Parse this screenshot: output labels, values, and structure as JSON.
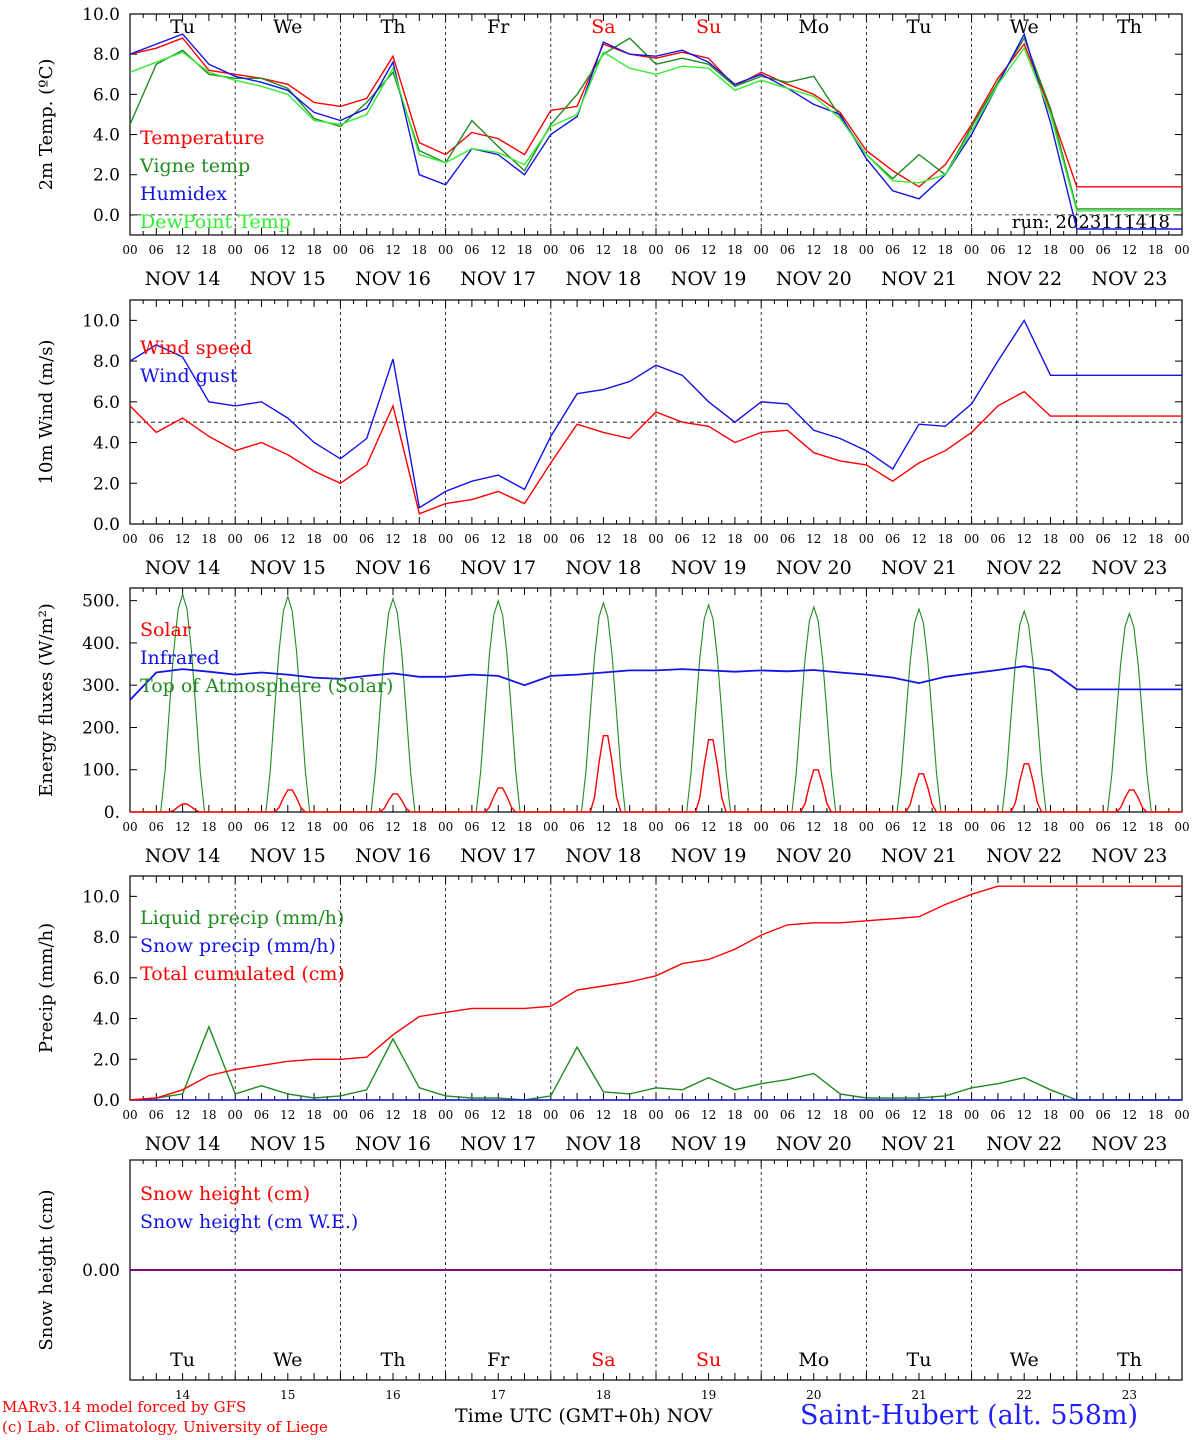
{
  "footer": {
    "credit_model": "MARv3.14 model forced by GFS",
    "credit_lab": "(c) Lab. of Climatology, University of Liege",
    "time_label": "Time UTC (GMT+0h) NOV",
    "station": "Saint-Hubert (alt. 558m)"
  },
  "colors": {
    "red": "#ff0000",
    "green": "#228b22",
    "blue": "#1414e6",
    "lightgreen": "#33ee33",
    "purple": "#7f007f"
  },
  "chart_data": [
    {
      "type": "line",
      "ylabel": "2m Temp. (ºC)",
      "ylim": [
        -1,
        10
      ],
      "yticks": [
        0,
        2,
        4,
        6,
        8,
        10
      ],
      "ytick_labels": [
        "0.0",
        "2.0",
        "4.0",
        "6.0",
        "8.0",
        "10.0"
      ],
      "run_label": "run: 2023111418",
      "reference_line": 0,
      "day_labels": [
        "Tu",
        "We",
        "Th",
        "Fr",
        "Sa",
        "Su",
        "Mo",
        "Tu",
        "We",
        "Th"
      ],
      "weekend_days": [
        4,
        5
      ],
      "hour_labels": [
        "00",
        "06",
        "12",
        "18"
      ],
      "date_labels": [
        "NOV 14",
        "NOV 15",
        "NOV 16",
        "NOV 17",
        "NOV 18",
        "NOV 19",
        "NOV 20",
        "NOV 21",
        "NOV 22",
        "NOV 23"
      ],
      "x_hours": [
        0,
        6,
        12,
        18,
        24,
        30,
        36,
        42,
        48,
        54,
        60,
        66,
        72,
        78,
        84,
        90,
        96,
        102,
        108,
        114,
        120,
        126,
        132,
        138,
        144,
        150,
        156,
        162,
        168,
        174,
        180,
        186,
        192,
        198,
        204,
        210,
        216,
        222,
        228,
        234,
        240
      ],
      "series": [
        {
          "name": "Temperature",
          "color": "red",
          "values": [
            8.0,
            8.3,
            8.8,
            7.2,
            7.0,
            6.8,
            6.5,
            5.6,
            5.4,
            5.8,
            7.9,
            3.6,
            3.0,
            4.1,
            3.8,
            3.0,
            5.2,
            5.4,
            8.5,
            8.0,
            7.8,
            8.1,
            7.8,
            6.4,
            7.1,
            6.5,
            6.0,
            5.1,
            3.2,
            2.2,
            1.4,
            2.5,
            4.5,
            6.8,
            8.5,
            5.2,
            1.4,
            1.4,
            1.4,
            1.4,
            1.4
          ]
        },
        {
          "name": "Vigne temp",
          "color": "green",
          "values": [
            4.5,
            7.5,
            8.2,
            7.0,
            6.8,
            6.8,
            6.3,
            4.8,
            4.4,
            5.6,
            7.1,
            3.2,
            2.6,
            4.7,
            3.4,
            2.2,
            4.5,
            6.0,
            8.0,
            8.8,
            7.5,
            7.8,
            7.5,
            6.4,
            6.9,
            6.6,
            6.9,
            4.9,
            3.0,
            1.8,
            3.0,
            2.0,
            4.4,
            6.6,
            8.8,
            5.3,
            0.3,
            0.3,
            0.3,
            0.3,
            0.3
          ]
        },
        {
          "name": "Humidex",
          "color": "blue",
          "values": [
            8.0,
            8.5,
            9.0,
            7.5,
            6.9,
            6.6,
            6.2,
            5.1,
            4.7,
            5.3,
            7.6,
            2.0,
            1.5,
            3.3,
            3.0,
            2.0,
            4.0,
            4.9,
            8.6,
            8.0,
            7.9,
            8.2,
            7.6,
            6.5,
            7.0,
            6.3,
            5.5,
            5.0,
            2.8,
            1.2,
            0.8,
            2.0,
            4.0,
            6.5,
            9.0,
            4.6,
            -0.7,
            -0.7,
            -0.7,
            -0.7,
            -0.7
          ]
        },
        {
          "name": "DewPoint Temp",
          "color": "lightgreen",
          "values": [
            7.1,
            7.6,
            8.1,
            7.1,
            6.7,
            6.4,
            6.0,
            4.7,
            4.5,
            5.0,
            7.3,
            3.0,
            2.6,
            3.3,
            3.1,
            2.5,
            4.4,
            5.0,
            8.1,
            7.3,
            7.0,
            7.4,
            7.3,
            6.2,
            6.7,
            6.3,
            5.9,
            4.8,
            3.0,
            1.7,
            1.6,
            2.0,
            4.2,
            6.5,
            8.3,
            5.0,
            0.2,
            0.2,
            0.2,
            0.2,
            0.2
          ]
        }
      ]
    },
    {
      "type": "line",
      "ylabel": "10m Wind (m/s)",
      "ylim": [
        0,
        11
      ],
      "yticks": [
        0,
        2,
        4,
        6,
        8,
        10
      ],
      "ytick_labels": [
        "0.0",
        "2.0",
        "4.0",
        "6.0",
        "8.0",
        "10.0"
      ],
      "reference_line": 5,
      "hour_labels": [
        "00",
        "06",
        "12",
        "18"
      ],
      "date_labels": [
        "NOV 14",
        "NOV 15",
        "NOV 16",
        "NOV 17",
        "NOV 18",
        "NOV 19",
        "NOV 20",
        "NOV 21",
        "NOV 22",
        "NOV 23"
      ],
      "x_hours": [
        0,
        6,
        12,
        18,
        24,
        30,
        36,
        42,
        48,
        54,
        60,
        66,
        72,
        78,
        84,
        90,
        96,
        102,
        108,
        114,
        120,
        126,
        132,
        138,
        144,
        150,
        156,
        162,
        168,
        174,
        180,
        186,
        192,
        198,
        204,
        210,
        216,
        222,
        228,
        234,
        240
      ],
      "series": [
        {
          "name": "Wind speed",
          "color": "red",
          "values": [
            5.8,
            4.5,
            5.2,
            4.3,
            3.6,
            4.0,
            3.4,
            2.6,
            2.0,
            2.9,
            5.8,
            0.5,
            1.0,
            1.2,
            1.6,
            1.0,
            3.0,
            4.9,
            4.5,
            4.2,
            5.5,
            5.0,
            4.8,
            4.0,
            4.5,
            4.6,
            3.5,
            3.1,
            2.9,
            2.1,
            3.0,
            3.6,
            4.5,
            5.8,
            6.5,
            5.3,
            5.3,
            5.3,
            5.3,
            5.3,
            5.3
          ]
        },
        {
          "name": "Wind gust",
          "color": "blue",
          "values": [
            8.0,
            8.8,
            8.2,
            6.0,
            5.8,
            6.0,
            5.2,
            4.0,
            3.2,
            4.2,
            8.1,
            0.8,
            1.6,
            2.1,
            2.4,
            1.7,
            4.3,
            6.4,
            6.6,
            7.0,
            7.8,
            7.3,
            6.0,
            5.0,
            6.0,
            5.9,
            4.6,
            4.2,
            3.6,
            2.7,
            4.9,
            4.8,
            5.9,
            8.0,
            10.0,
            7.3,
            7.3,
            7.3,
            7.3,
            7.3,
            7.3
          ]
        }
      ]
    },
    {
      "type": "line",
      "ylabel": "Energy fluxes (W/m²)",
      "ylim": [
        0,
        530
      ],
      "yticks": [
        0,
        100,
        200,
        300,
        400,
        500
      ],
      "ytick_labels": [
        "0.",
        "100.",
        "200.",
        "300.",
        "400.",
        "500."
      ],
      "hour_labels": [
        "00",
        "06",
        "12",
        "18"
      ],
      "date_labels": [
        "NOV 14",
        "NOV 15",
        "NOV 16",
        "NOV 17",
        "NOV 18",
        "NOV 19",
        "NOV 20",
        "NOV 21",
        "NOV 22",
        "NOV 23"
      ],
      "daily_peaks": {
        "top_of_atmosphere": [
          515,
          510,
          505,
          500,
          495,
          490,
          485,
          480,
          475,
          470
        ],
        "solar": [
          20,
          55,
          45,
          60,
          190,
          180,
          105,
          95,
          120,
          55
        ]
      },
      "series": [
        {
          "name": "Solar",
          "color": "red"
        },
        {
          "name": "Infrared",
          "color": "blue",
          "x_hours": [
            0,
            6,
            12,
            18,
            24,
            30,
            36,
            42,
            48,
            54,
            60,
            66,
            72,
            78,
            84,
            90,
            96,
            102,
            108,
            114,
            120,
            126,
            132,
            138,
            144,
            150,
            156,
            162,
            168,
            174,
            180,
            186,
            192,
            198,
            204,
            210,
            216,
            222,
            228,
            234,
            240
          ],
          "values": [
            265,
            330,
            338,
            332,
            325,
            330,
            325,
            318,
            315,
            322,
            328,
            320,
            320,
            325,
            322,
            300,
            322,
            325,
            330,
            335,
            335,
            338,
            335,
            332,
            335,
            333,
            336,
            330,
            325,
            318,
            305,
            320,
            328,
            336,
            345,
            335,
            290,
            290,
            290,
            290,
            290
          ]
        },
        {
          "name": "Top of Atmosphere (Solar)",
          "color": "green"
        }
      ]
    },
    {
      "type": "line",
      "ylabel": "Precip (mm/h)",
      "ylim": [
        0,
        11
      ],
      "yticks": [
        0,
        2,
        4,
        6,
        8,
        10
      ],
      "ytick_labels": [
        "0.0",
        "2.0",
        "4.0",
        "6.0",
        "8.0",
        "10.0"
      ],
      "hour_labels": [
        "00",
        "06",
        "12",
        "18"
      ],
      "date_labels": [
        "NOV 14",
        "NOV 15",
        "NOV 16",
        "NOV 17",
        "NOV 18",
        "NOV 19",
        "NOV 20",
        "NOV 21",
        "NOV 22",
        "NOV 23"
      ],
      "x_hours": [
        0,
        6,
        12,
        18,
        24,
        30,
        36,
        42,
        48,
        54,
        60,
        66,
        72,
        78,
        84,
        90,
        96,
        102,
        108,
        114,
        120,
        126,
        132,
        138,
        144,
        150,
        156,
        162,
        168,
        174,
        180,
        186,
        192,
        198,
        204,
        210,
        216,
        222,
        228,
        234,
        240
      ],
      "series": [
        {
          "name": "Liquid precip (mm/h)",
          "color": "green",
          "values": [
            0.0,
            0.1,
            0.3,
            3.6,
            0.3,
            0.7,
            0.3,
            0.1,
            0.2,
            0.5,
            3.0,
            0.6,
            0.2,
            0.1,
            0.1,
            0.0,
            0.2,
            2.6,
            0.4,
            0.3,
            0.6,
            0.5,
            1.1,
            0.5,
            0.8,
            1.0,
            1.3,
            0.3,
            0.1,
            0.1,
            0.1,
            0.2,
            0.6,
            0.8,
            1.1,
            0.5,
            0.0,
            0.0,
            0.0,
            0.0,
            0.0
          ]
        },
        {
          "name": "Snow precip (mm/h)",
          "color": "blue",
          "values": [
            0,
            0,
            0,
            0,
            0,
            0,
            0,
            0,
            0,
            0,
            0,
            0,
            0,
            0,
            0,
            0,
            0,
            0,
            0,
            0,
            0,
            0,
            0,
            0,
            0,
            0,
            0,
            0,
            0,
            0,
            0,
            0,
            0,
            0,
            0,
            0,
            0,
            0,
            0,
            0,
            0
          ]
        },
        {
          "name": "Total cumulated (cm)",
          "color": "red",
          "values": [
            0.0,
            0.1,
            0.5,
            1.2,
            1.5,
            1.7,
            1.9,
            2.0,
            2.0,
            2.1,
            3.2,
            4.1,
            4.3,
            4.5,
            4.5,
            4.5,
            4.6,
            5.4,
            5.6,
            5.8,
            6.1,
            6.7,
            6.9,
            7.4,
            8.1,
            8.6,
            8.7,
            8.7,
            8.8,
            8.9,
            9.0,
            9.6,
            10.1,
            10.5,
            10.5,
            10.5,
            10.5,
            10.5,
            10.5,
            10.5,
            10.5
          ]
        }
      ]
    },
    {
      "type": "line",
      "ylabel": "Snow height (cm)",
      "ylim": [
        -1,
        1
      ],
      "yticks": [
        0
      ],
      "ytick_labels": [
        "0.00"
      ],
      "day_labels": [
        "Tu",
        "We",
        "Th",
        "Fr",
        "Sa",
        "Su",
        "Mo",
        "Tu",
        "We",
        "Th"
      ],
      "day_numbers": [
        "14",
        "15",
        "16",
        "17",
        "18",
        "19",
        "20",
        "21",
        "22",
        "23"
      ],
      "weekend_days": [
        4,
        5
      ],
      "series": [
        {
          "name": "Snow height (cm)",
          "color": "red",
          "value": 0
        },
        {
          "name": "Snow height (cm W.E.)",
          "color": "blue",
          "value": 0
        }
      ]
    }
  ]
}
